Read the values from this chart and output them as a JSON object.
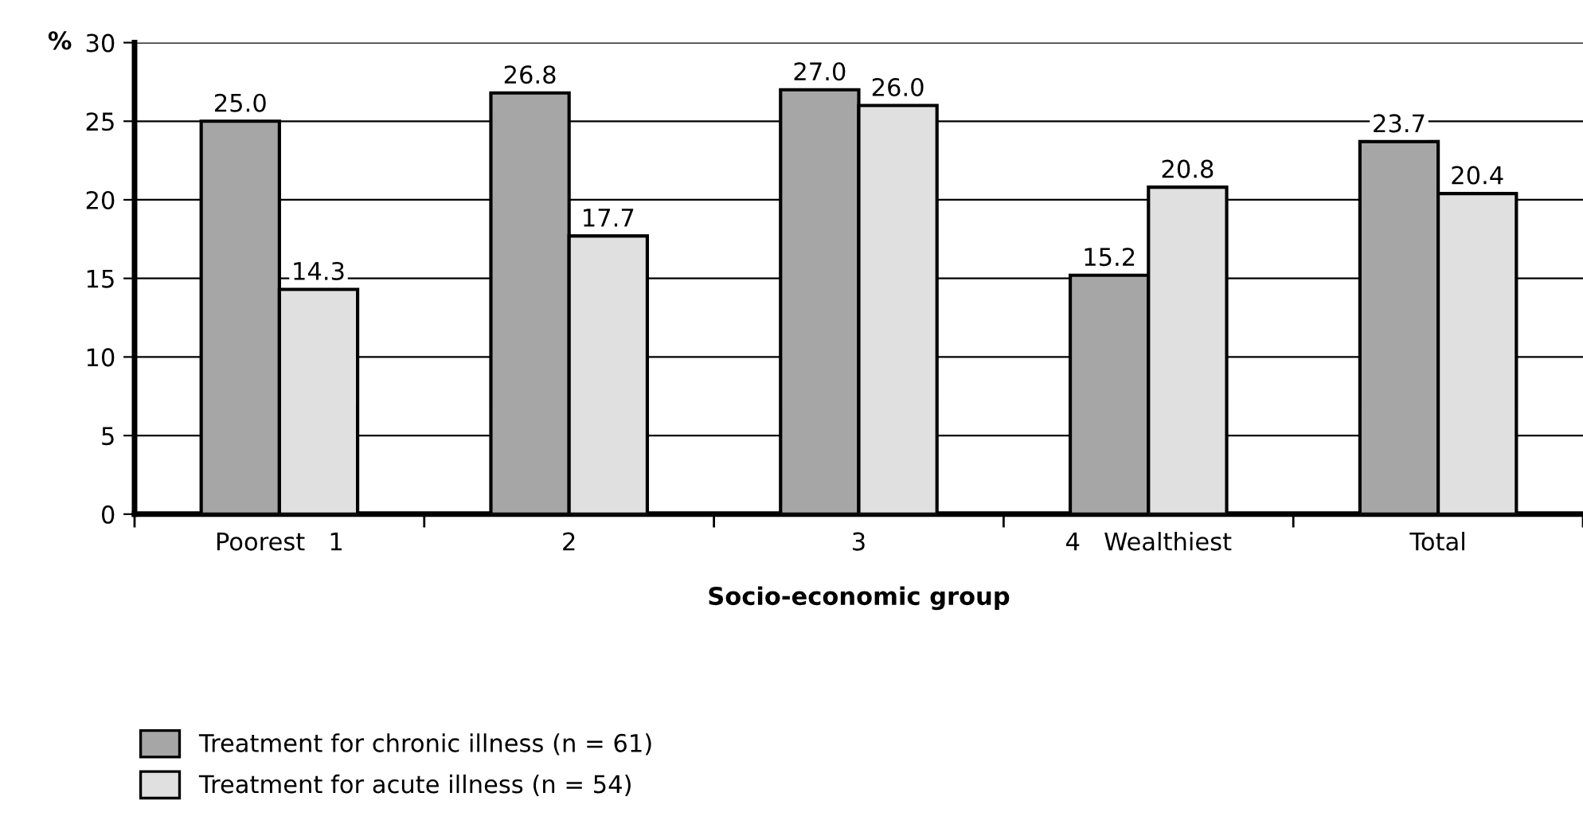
{
  "chart_data": {
    "type": "bar",
    "xlabel": "Socio-economic group",
    "ylabel": "%",
    "categories": [
      "Poorest   1",
      "2",
      "3",
      "4   Wealthiest",
      "Total"
    ],
    "series": [
      {
        "name": "Treatment for chronic illness (n = 61)",
        "color": "#a6a6a6",
        "values": [
          25.0,
          26.8,
          27.0,
          15.2,
          23.7
        ],
        "value_labels": [
          "25.0",
          "26.8",
          "27.0",
          "15.2",
          "23.7"
        ]
      },
      {
        "name": "Treatment for acute illness (n = 54)",
        "color": "#e0e0e0",
        "values": [
          14.3,
          17.7,
          26.0,
          20.8,
          20.4
        ],
        "value_labels": [
          "14.3",
          "17.7",
          "26.0",
          "20.8",
          "20.4"
        ]
      }
    ],
    "ylim": [
      0,
      30
    ],
    "yticks": [
      0,
      5,
      10,
      15,
      20,
      25,
      30
    ],
    "grid": "y",
    "legend": "bottom left"
  }
}
